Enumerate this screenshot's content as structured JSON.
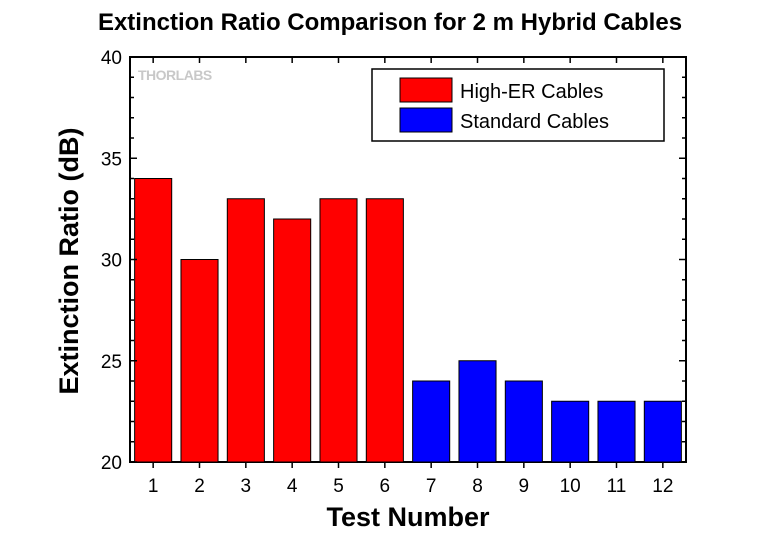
{
  "chart_data": {
    "type": "bar",
    "title": "Extinction Ratio Comparison for 2 m Hybrid Cables",
    "xlabel": "Test Number",
    "ylabel": "Extinction Ratio (dB)",
    "ylim": [
      20,
      40
    ],
    "yticks": [
      20,
      25,
      30,
      35,
      40
    ],
    "categories": [
      "1",
      "2",
      "3",
      "4",
      "5",
      "6",
      "7",
      "8",
      "9",
      "10",
      "11",
      "12"
    ],
    "series": [
      {
        "name": "High-ER Cables",
        "color": "#ff0000",
        "values": [
          34,
          30,
          33,
          32,
          33,
          33,
          null,
          null,
          null,
          null,
          null,
          null
        ]
      },
      {
        "name": "Standard Cables",
        "color": "#0000ff",
        "values": [
          null,
          null,
          null,
          null,
          null,
          null,
          24,
          25,
          24,
          23,
          23,
          23
        ]
      }
    ],
    "legend_position": "top-right",
    "grid": false,
    "watermark": "THORLABS"
  }
}
